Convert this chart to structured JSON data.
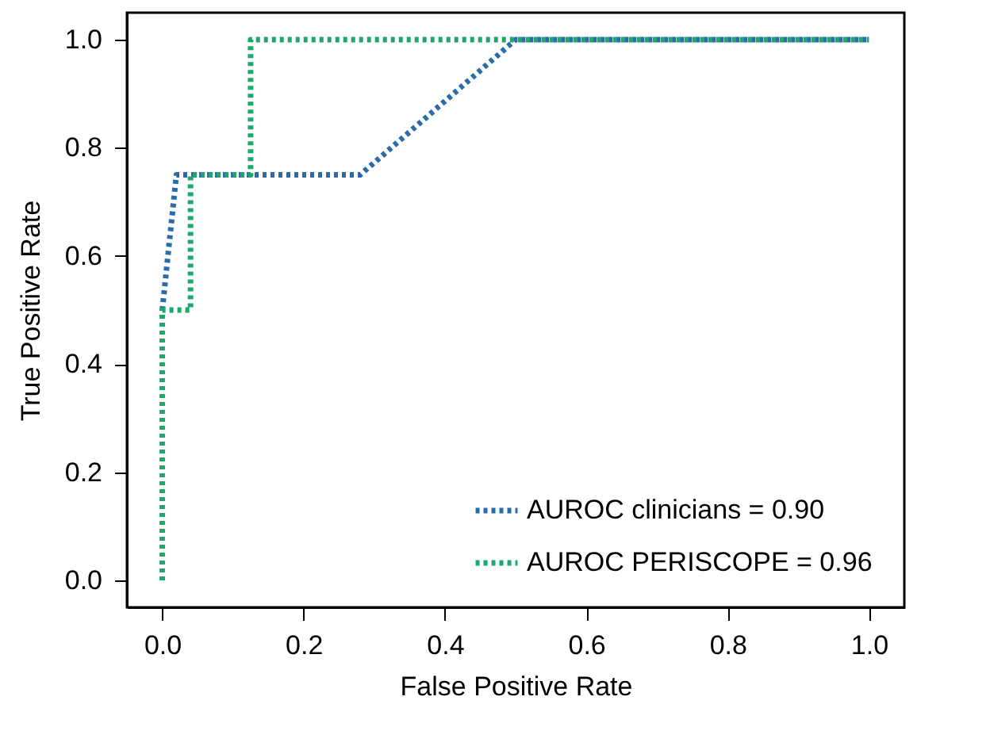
{
  "chart_data": {
    "type": "line",
    "xlabel": "False Positive Rate",
    "ylabel": "True Positive Rate",
    "xlim": [
      -0.05,
      1.05
    ],
    "ylim": [
      -0.05,
      1.05
    ],
    "xticks": [
      {
        "value": 0,
        "label": "0.0"
      },
      0.2,
      0.4,
      0.6,
      0.8,
      {
        "value": 1,
        "label": "1.0"
      }
    ],
    "yticks": [
      {
        "value": 0,
        "label": "0.0"
      },
      0.2,
      0.4,
      0.6,
      0.8,
      {
        "value": 1,
        "label": "1.0"
      }
    ],
    "grid": false,
    "legend": "bottom right",
    "line_style": "dotted",
    "series": [
      {
        "name": "AUROC clinicians = 0.90",
        "color": "#2a6cab",
        "x": [
          0,
          0.02,
          0.28,
          0.5,
          1
        ],
        "values": [
          0.5,
          0.75,
          0.75,
          1,
          1
        ]
      },
      {
        "name": "AUROC PERISCOPE = 0.96",
        "color": "#1aaa6e",
        "x": [
          0,
          0,
          0.04,
          0.04,
          0.125,
          0.125,
          1
        ],
        "values": [
          0,
          0.5,
          0.5,
          0.75,
          0.75,
          1,
          1
        ]
      }
    ]
  }
}
